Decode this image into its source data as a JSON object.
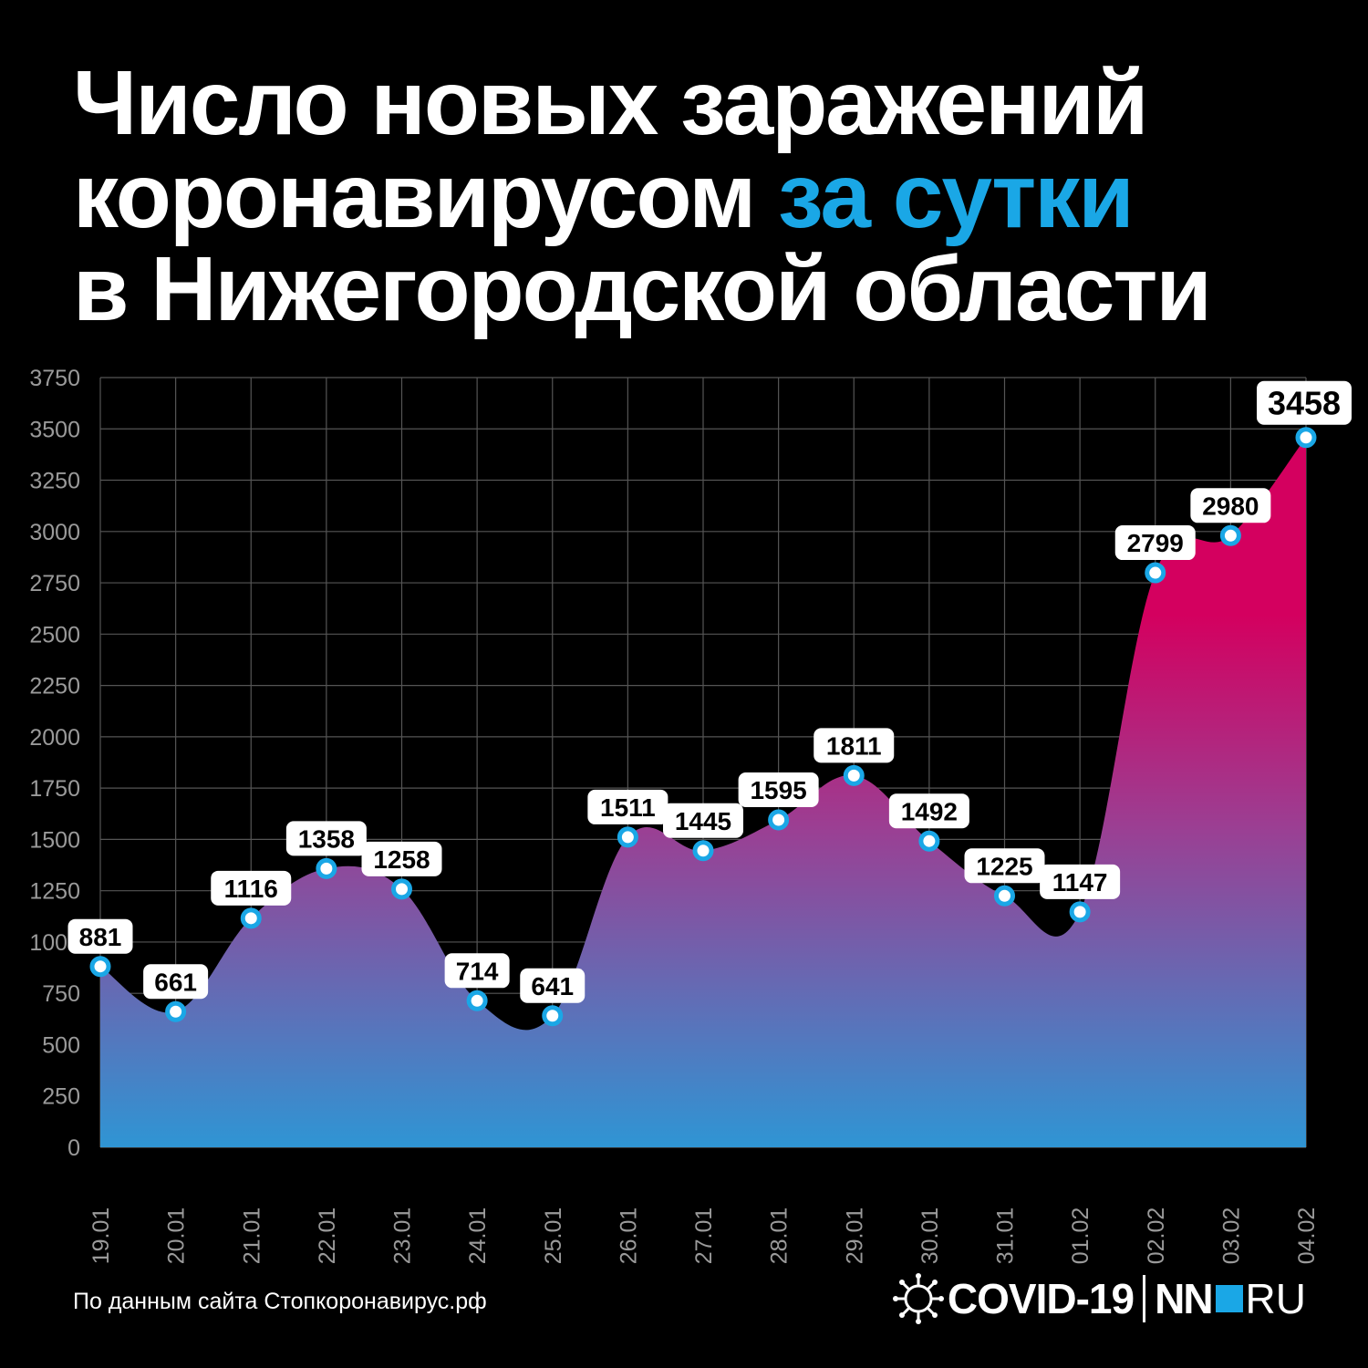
{
  "title": {
    "line1": "Число новых заражений",
    "line2_start": "коронавирусом",
    "line2_accent": "за сутки",
    "line3": "в Нижегородской области"
  },
  "source": "По данным сайта Стопкоронавирус.рф",
  "brand": {
    "covid": "COVID-19",
    "nn": "NN",
    "ru": "RU"
  },
  "colors": {
    "accent": "#1aa7e6",
    "area_top": "#d4005f",
    "area_bottom": "#2f95d4",
    "background": "#000000"
  },
  "chart_data": {
    "type": "area",
    "categories": [
      "19.01",
      "20.01",
      "21.01",
      "22.01",
      "23.01",
      "24.01",
      "25.01",
      "26.01",
      "27.01",
      "28.01",
      "29.01",
      "30.01",
      "31.01",
      "01.02",
      "02.02",
      "03.02",
      "04.02"
    ],
    "values": [
      881,
      661,
      1116,
      1358,
      1258,
      714,
      641,
      1511,
      1445,
      1595,
      1811,
      1492,
      1225,
      1147,
      2799,
      2980,
      3458
    ],
    "yticks": [
      0,
      250,
      500,
      750,
      1000,
      1250,
      1500,
      1750,
      2000,
      2250,
      2500,
      2750,
      3000,
      3250,
      3500,
      3750
    ],
    "ylim": [
      0,
      3750
    ],
    "grid": true,
    "data_labels": true
  }
}
